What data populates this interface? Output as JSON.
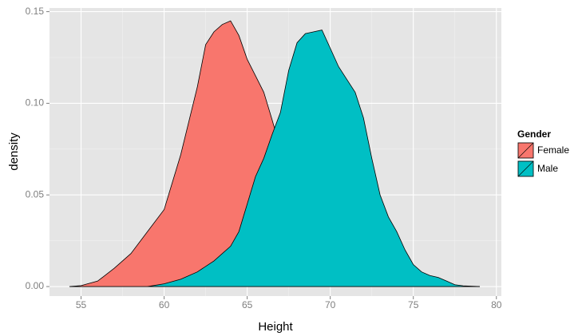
{
  "chart_data": {
    "type": "area",
    "x_label": "Height",
    "y_label": "density",
    "legend_title": "Gender",
    "legend": "right",
    "grid": true,
    "xlim": [
      53.1,
      80.3
    ],
    "ylim": [
      -0.0052,
      0.152
    ],
    "xticks": [
      55,
      60,
      65,
      70,
      75,
      80
    ],
    "yticks": [
      {
        "value": 0,
        "label": "0.00"
      },
      {
        "value": 0.05,
        "label": "0.05"
      },
      {
        "value": 0.1,
        "label": "0.10"
      },
      {
        "value": 0.15,
        "label": "0.15"
      }
    ],
    "series": [
      {
        "name": "Female",
        "color": "#f8766d",
        "x": [
          54.3,
          55,
          56,
          57,
          58,
          59,
          60,
          61,
          62,
          62.5,
          63,
          63.5,
          64,
          64.5,
          65,
          65.5,
          66,
          66.5,
          67,
          68,
          69,
          70,
          71,
          72,
          74,
          76,
          79
        ],
        "values": [
          0,
          0.0005,
          0.003,
          0.01,
          0.018,
          0.03,
          0.042,
          0.072,
          0.109,
          0.132,
          0.139,
          0.143,
          0.145,
          0.137,
          0.124,
          0.115,
          0.106,
          0.091,
          0.075,
          0.05,
          0.03,
          0.015,
          0.007,
          0.003,
          0.0008,
          0.0002,
          0
        ]
      },
      {
        "name": "Male",
        "color": "#00bfc4",
        "x": [
          59,
          60,
          61,
          62,
          63,
          64,
          64.5,
          65,
          65.5,
          66,
          66.5,
          67,
          67.5,
          68,
          68.5,
          69,
          69.5,
          70,
          70.5,
          71,
          71.5,
          72,
          72.5,
          73,
          73.5,
          74,
          74.5,
          75,
          75.5,
          76,
          76.5,
          77,
          77.5,
          78,
          79
        ],
        "values": [
          0,
          0.0015,
          0.004,
          0.008,
          0.014,
          0.022,
          0.03,
          0.045,
          0.06,
          0.07,
          0.083,
          0.095,
          0.118,
          0.133,
          0.138,
          0.139,
          0.14,
          0.13,
          0.12,
          0.113,
          0.106,
          0.092,
          0.07,
          0.05,
          0.038,
          0.03,
          0.02,
          0.012,
          0.008,
          0.006,
          0.005,
          0.003,
          0.001,
          0.0004,
          0
        ]
      }
    ]
  }
}
